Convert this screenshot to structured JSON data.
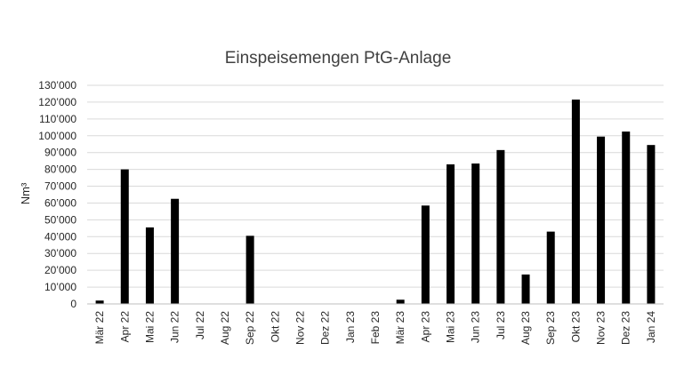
{
  "chart_data": {
    "type": "bar",
    "title": "Einspeisemengen PtG-Anlage",
    "xlabel": "",
    "ylabel": "Nm³",
    "ylim": [
      0,
      130000
    ],
    "yticks": [
      0,
      10000,
      20000,
      30000,
      40000,
      50000,
      60000,
      70000,
      80000,
      90000,
      100000,
      110000,
      120000,
      130000
    ],
    "ytick_labels": [
      "0",
      "10’000",
      "20’000",
      "30’000",
      "40’000",
      "50’000",
      "60’000",
      "70’000",
      "80’000",
      "90’000",
      "100’000",
      "110’000",
      "120’000",
      "130’000"
    ],
    "grid": true,
    "legend": "none",
    "bar_color": "#000000",
    "grid_color": "#d9d9d9",
    "categories": [
      "Mär 22",
      "Apr 22",
      "Mai 22",
      "Jun 22",
      "Jul 22",
      "Aug 22",
      "Sep 22",
      "Okt 22",
      "Nov 22",
      "Dez 22",
      "Jan 23",
      "Feb 23",
      "Mär 23",
      "Apr 23",
      "Mai 23",
      "Jun 23",
      "Jul 23",
      "Aug 23",
      "Sep 23",
      "Okt 23",
      "Nov 23",
      "Dez 23",
      "Jan 24"
    ],
    "values": [
      2000,
      80000,
      45500,
      62500,
      0,
      0,
      40500,
      0,
      0,
      0,
      0,
      0,
      2500,
      58500,
      83000,
      83500,
      91500,
      17500,
      43000,
      121500,
      99500,
      102500,
      94500
    ]
  }
}
